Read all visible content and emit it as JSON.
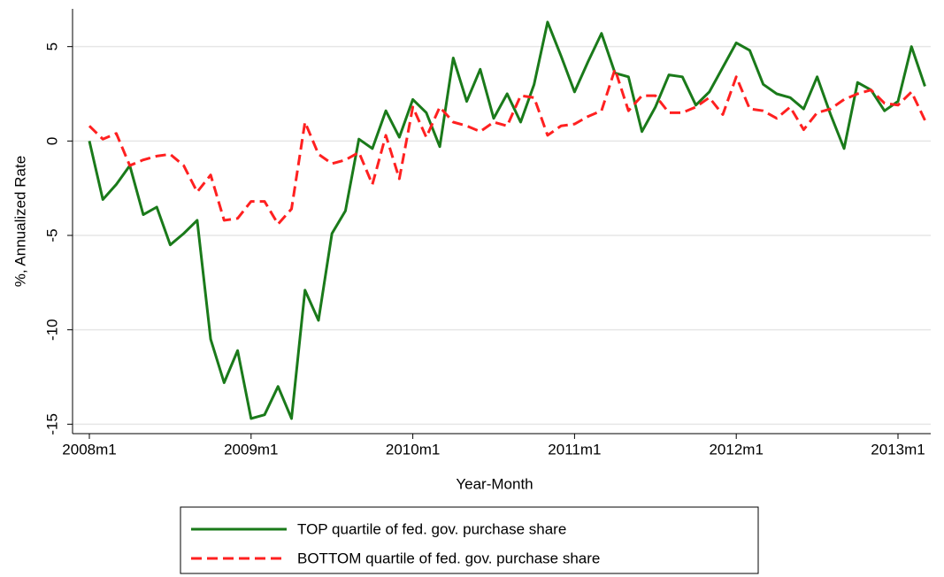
{
  "chart_data": {
    "type": "line",
    "x_label": "Year-Month",
    "y_label": "%, Annualized Rate",
    "categories": [
      "2008m1",
      null,
      null,
      null,
      null,
      null,
      null,
      null,
      null,
      null,
      null,
      null,
      "2009m1",
      null,
      null,
      null,
      null,
      null,
      null,
      null,
      null,
      null,
      null,
      null,
      "2010m1",
      null,
      null,
      null,
      null,
      null,
      null,
      null,
      null,
      null,
      null,
      null,
      "2011m1",
      null,
      null,
      null,
      null,
      null,
      null,
      null,
      null,
      null,
      null,
      null,
      "2012m1",
      null,
      null,
      null,
      null,
      null,
      null,
      null,
      null,
      null,
      null,
      null,
      "2013m1",
      null,
      null
    ],
    "series": [
      {
        "name": "TOP quartile of fed. gov. purchase share",
        "color": "#1a7a1a",
        "style": "solid",
        "values": [
          0,
          -3.1,
          -2.3,
          -1.3,
          -3.9,
          -3.5,
          -5.5,
          -4.9,
          -4.2,
          -10.5,
          -12.8,
          -11.1,
          -14.7,
          -14.5,
          -13,
          -14.7,
          -7.9,
          -9.5,
          -4.9,
          -3.7,
          0.1,
          -0.4,
          1.6,
          0.2,
          2.2,
          1.5,
          -0.3,
          4.4,
          2.1,
          3.8,
          1.2,
          2.5,
          1.0,
          3.0,
          6.3,
          4.5,
          2.6,
          4.2,
          5.7,
          3.6,
          3.4,
          0.5,
          1.8,
          3.5,
          3.4,
          1.9,
          2.6,
          3.9,
          5.2,
          4.8,
          3.0,
          2.5,
          2.3,
          1.7,
          3.4,
          1.4,
          -0.4,
          3.1,
          2.7,
          1.6,
          2.1,
          5.0,
          2.9
        ]
      },
      {
        "name": "BOTTOM quartile of fed. gov. purchase share",
        "color": "#ff2020",
        "style": "dashed",
        "values": [
          0.8,
          0.1,
          0.4,
          -1.3,
          -1.0,
          -0.8,
          -0.7,
          -1.3,
          -2.7,
          -1.8,
          -4.2,
          -4.1,
          -3.2,
          -3.2,
          -4.4,
          -3.6,
          1.0,
          -0.7,
          -1.2,
          -1.0,
          -0.6,
          -2.3,
          0.3,
          -2.0,
          1.8,
          0.2,
          1.8,
          1.0,
          0.8,
          0.5,
          1.0,
          0.8,
          2.4,
          2.3,
          0.3,
          0.8,
          0.9,
          1.3,
          1.6,
          3.8,
          1.6,
          2.4,
          2.4,
          1.5,
          1.5,
          1.8,
          2.3,
          1.4,
          3.4,
          1.7,
          1.6,
          1.2,
          1.8,
          0.6,
          1.5,
          1.7,
          2.2,
          2.5,
          2.7,
          2.0,
          1.9,
          2.6,
          1.1
        ]
      }
    ],
    "ylim": [
      -15.5,
      7
    ],
    "yticks": [
      -15,
      -10,
      -5,
      0,
      5
    ],
    "grid": true,
    "legend": "bottom"
  }
}
